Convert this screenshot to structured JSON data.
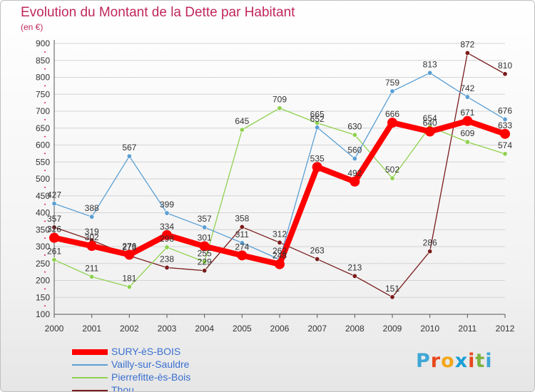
{
  "header": {
    "title": "Evolution du Montant de la Dette par Habitant",
    "unit": "(en €)"
  },
  "colors": {
    "title": "#c1275d",
    "legend_text": "#3a6fd0",
    "axis_text": "#333333"
  },
  "logo": {
    "letters": [
      "P",
      "r",
      "o",
      "x",
      "i",
      "t",
      "i"
    ],
    "letter_colors": [
      "#3fa7d6",
      "#e8491d",
      "#f2a71b",
      "#1a9fd5",
      "#e8491d",
      "#7cb342",
      "#3fa7d6"
    ]
  },
  "chart_data": {
    "type": "line",
    "title": "Evolution du Montant de la Dette par Habitant",
    "subtitle": "(en €)",
    "x": [
      "2000",
      "2001",
      "2002",
      "2003",
      "2004",
      "2005",
      "2006",
      "2007",
      "2008",
      "2009",
      "2010",
      "2011",
      "2012"
    ],
    "y_ticks": [
      100,
      150,
      200,
      250,
      300,
      350,
      400,
      450,
      500,
      550,
      600,
      650,
      700,
      750,
      800,
      850,
      900
    ],
    "ylim": [
      100,
      900
    ],
    "grid": "horizontal",
    "legend_position": "bottom-left",
    "series": [
      {
        "name": "SURY-èS-BOIS",
        "color": "#ff0000",
        "width": 8,
        "values": [
          326,
          302,
          276,
          334,
          301,
          274,
          248,
          535,
          492,
          666,
          640,
          671,
          633
        ],
        "labels": [
          "326",
          "302",
          "276",
          "334",
          "301",
          "274",
          "248",
          "535",
          "492",
          "666",
          "640",
          "671",
          "633"
        ]
      },
      {
        "name": "Vailly-sur-Sauldre",
        "color": "#5a9fd4",
        "width": 1.3,
        "values": [
          427,
          388,
          567,
          399,
          357,
          311,
          262,
          652,
          560,
          759,
          813,
          742,
          676
        ],
        "labels": [
          "427",
          "388",
          "567",
          "399",
          "357",
          "311",
          "262",
          "652",
          "560",
          "759",
          "813",
          "742",
          "676"
        ]
      },
      {
        "name": "Pierrefitte-ès-Bois",
        "color": "#8fd14f",
        "width": 1.3,
        "values": [
          261,
          211,
          181,
          298,
          255,
          645,
          709,
          665,
          630,
          502,
          654,
          609,
          574
        ],
        "labels": [
          "261",
          "211",
          "181",
          "298",
          "255",
          "645",
          "709",
          "665",
          "630",
          "502",
          "654",
          "609",
          "574"
        ]
      },
      {
        "name": "Thou",
        "color": "#7a1c1c",
        "width": 1.3,
        "values": [
          357,
          319,
          273,
          238,
          229,
          358,
          312,
          263,
          213,
          151,
          286,
          872,
          810
        ],
        "labels": [
          "357",
          "319",
          "273",
          "238",
          "229",
          "358",
          "312",
          "263",
          "213",
          "151",
          "286",
          "872",
          "810"
        ]
      }
    ]
  }
}
